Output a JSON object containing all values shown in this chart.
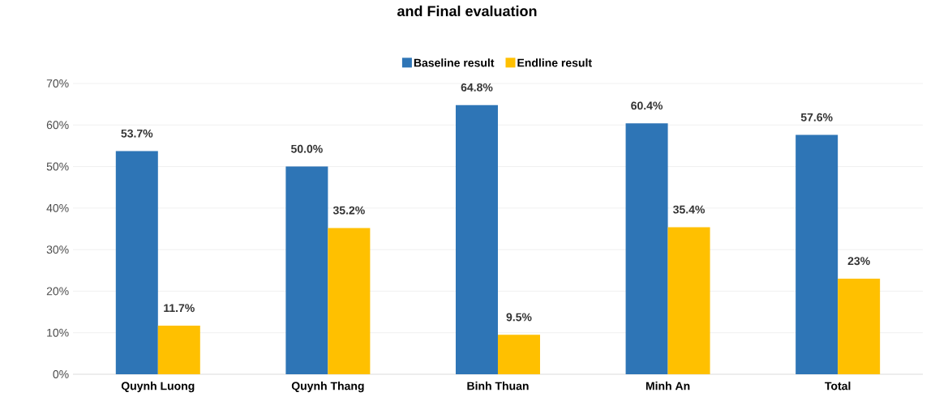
{
  "chart_data": {
    "type": "bar",
    "title": "and Final evaluation",
    "categories": [
      "Quynh Luong",
      "Quynh Thang",
      "Binh Thuan",
      "Minh An",
      "Total"
    ],
    "series": [
      {
        "name": "Baseline result",
        "color": "#2e75b6",
        "values": [
          53.7,
          50.0,
          64.8,
          60.4,
          57.6
        ],
        "value_labels": [
          "53.7%",
          "50.0%",
          "64.8%",
          "60.4%",
          "57.6%"
        ]
      },
      {
        "name": "Endline result",
        "color": "#ffc000",
        "values": [
          11.7,
          35.2,
          9.5,
          35.4,
          23
        ],
        "value_labels": [
          "11.7%",
          "35.2%",
          "9.5%",
          "35.4%",
          "23%"
        ]
      }
    ],
    "ylim": [
      0,
      70
    ],
    "yticks": [
      {
        "value": 0,
        "label": "0%"
      },
      {
        "value": 10,
        "label": "10%"
      },
      {
        "value": 20,
        "label": "20%"
      },
      {
        "value": 30,
        "label": "30%"
      },
      {
        "value": 40,
        "label": "40%"
      },
      {
        "value": 50,
        "label": "50%"
      },
      {
        "value": 60,
        "label": "60%"
      },
      {
        "value": 70,
        "label": "70%"
      }
    ],
    "grid": "y",
    "legend": "top"
  }
}
